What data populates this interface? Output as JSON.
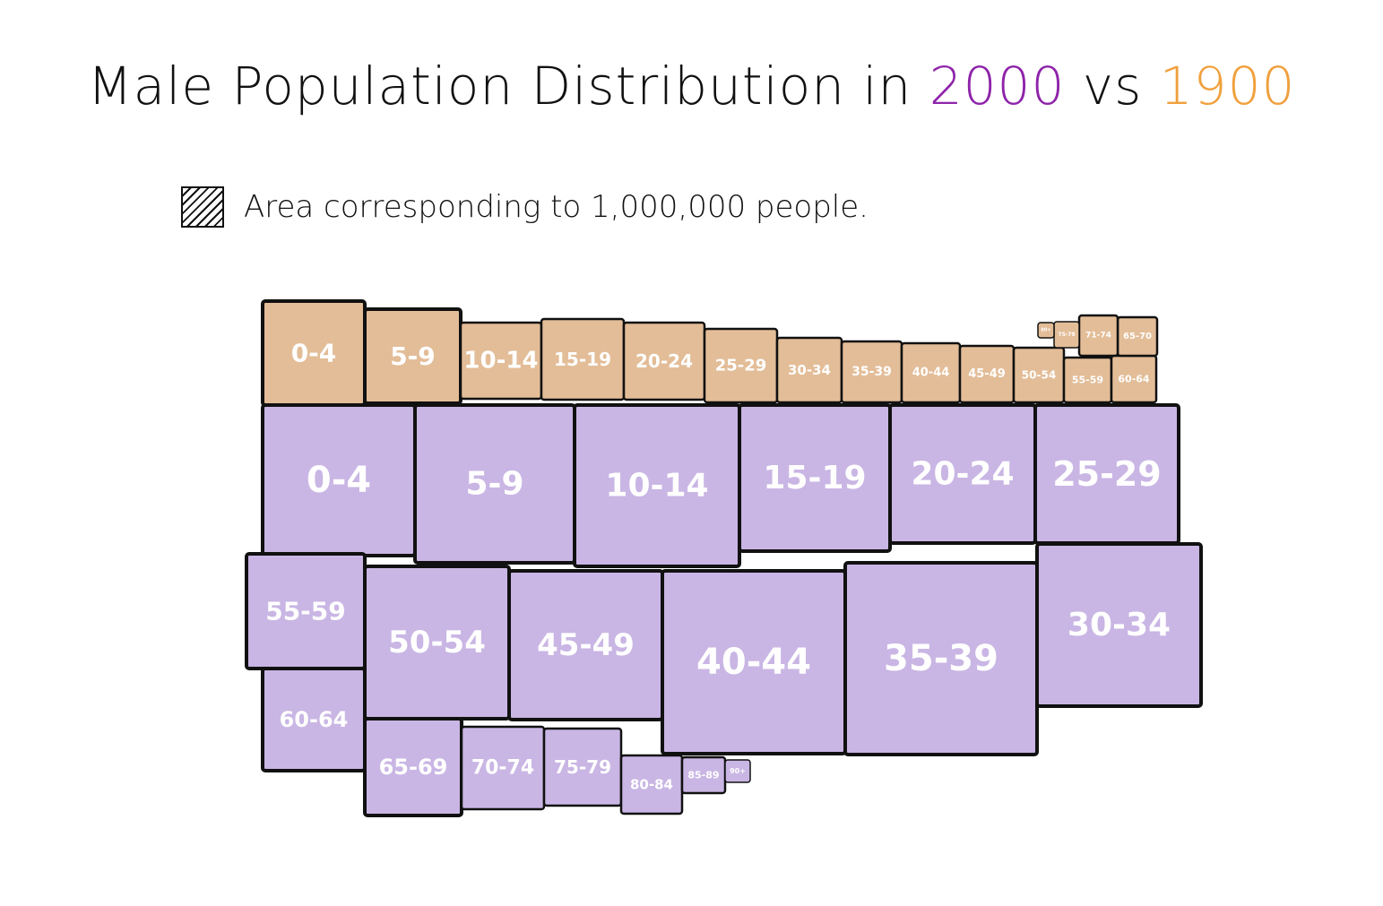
{
  "title": {
    "prefix": "Male Population Distribution in",
    "year_a": "2000",
    "vs": "vs",
    "year_b": "1900"
  },
  "legend": {
    "swatch_icon": "hatched-square-icon",
    "text": "Area corresponding to 1,000,000 people."
  },
  "colors": {
    "year_2000_title": "#8e24aa",
    "year_1900_title": "#f0a03c",
    "fill_2000": "#c9b6e4",
    "fill_1900": "#e2bd98",
    "outline": "#111111",
    "label": "#ffffff"
  },
  "chart_data": {
    "type": "area",
    "unit": "1,000,000 people",
    "series": [
      {
        "name": "1900",
        "categories": [
          "0-4",
          "5-9",
          "10-14",
          "15-19",
          "20-24",
          "25-29",
          "30-34",
          "35-39",
          "40-44",
          "45-49",
          "50-54",
          "55-59",
          "60-64",
          "65-69",
          "70-74",
          "75-79",
          "80-84",
          "85-89"
        ],
        "values": [
          4.6,
          4.1,
          3.7,
          3.6,
          3.4,
          2.9,
          2.4,
          2.2,
          1.9,
          1.6,
          1.4,
          1.05,
          0.9,
          0.7,
          0.6,
          0.08,
          0.04,
          0.02
        ]
      },
      {
        "name": "2000",
        "categories": [
          "0-4",
          "5-9",
          "10-14",
          "15-19",
          "20-24",
          "25-29",
          "30-34",
          "35-39",
          "40-44",
          "45-49",
          "50-54",
          "55-59",
          "60-64",
          "65-69",
          "70-74",
          "75-79",
          "80-84",
          "85-89",
          "90+"
        ],
        "values": [
          10.0,
          10.6,
          10.8,
          10.4,
          9.8,
          9.3,
          10.3,
          11.2,
          11.4,
          9.9,
          8.6,
          6.6,
          5.1,
          4.4,
          3.9,
          3.0,
          2.0,
          0.9,
          0.3
        ]
      }
    ]
  },
  "cell_labels": {
    "b_0_4": "0-4",
    "b_5_9": "5-9",
    "b_10_14": "10-14",
    "b_15_19": "15-19",
    "b_20_24": "20-24",
    "b_25_29": "25-29",
    "b_30_34": "30-34",
    "b_35_39": "35-39",
    "b_40_44": "40-44",
    "b_45_49": "45-49",
    "b_50_54": "50-54",
    "b_55_59": "55-59",
    "b_60_64": "60-64",
    "b_65_70": "65-70",
    "b_71_74": "71-74",
    "b_75_79": "75-79",
    "b_80": "80+",
    "a_0_4": "0-4",
    "a_5_9": "5-9",
    "a_10_14": "10-14",
    "a_15_19": "15-19",
    "a_20_24": "20-24",
    "a_25_29": "25-29",
    "a_30_34": "30-34",
    "a_35_39": "35-39",
    "a_40_44": "40-44",
    "a_45_49": "45-49",
    "a_50_54": "50-54",
    "a_55_59": "55-59",
    "a_60_64": "60-64",
    "a_65_69": "65-69",
    "a_70_74": "70-74",
    "a_75_79": "75-79",
    "a_80_84": "80-84",
    "a_85_89": "85-89",
    "a_90": "90+"
  }
}
